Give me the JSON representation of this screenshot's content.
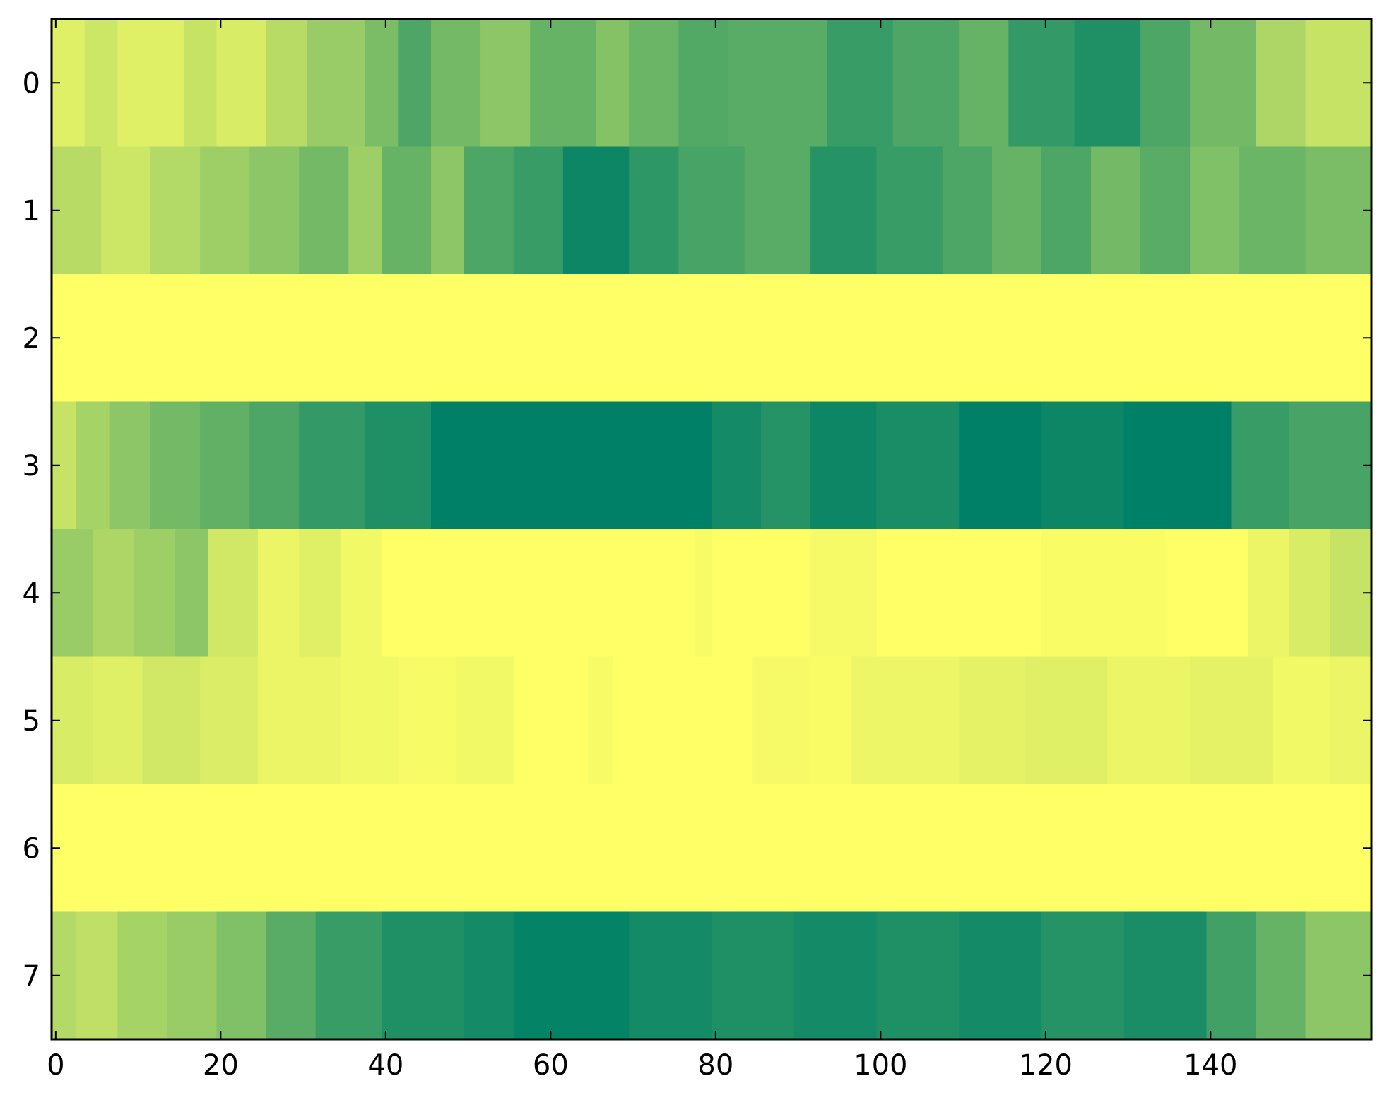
{
  "chart_data": {
    "type": "heatmap",
    "title": "",
    "xlabel": "",
    "ylabel": "",
    "colormap": "summer",
    "colormap_stops": [
      "#008066",
      "#ffff66"
    ],
    "value_range": [
      0,
      1
    ],
    "n_cols": 160,
    "rows": [
      0,
      1,
      2,
      3,
      4,
      5,
      6,
      7
    ],
    "x_ticks": [
      0,
      20,
      40,
      60,
      80,
      100,
      120,
      140
    ],
    "x_tick_labels": [
      "0",
      "20",
      "40",
      "60",
      "80",
      "100",
      "120",
      "140"
    ],
    "y_ticks": [
      0,
      1,
      2,
      3,
      4,
      5,
      6,
      7
    ],
    "y_tick_labels": [
      "0",
      "1",
      "2",
      "3",
      "4",
      "5",
      "6",
      "7"
    ],
    "xlim": [
      -0.5,
      159.5
    ],
    "ylim": [
      7.5,
      -0.5
    ],
    "grid": false,
    "legend": "none",
    "row_segments": [
      [
        {
          "from": 0,
          "to": 4,
          "value": 0.88
        },
        {
          "from": 4,
          "to": 8,
          "value": 0.8
        },
        {
          "from": 8,
          "to": 16,
          "value": 0.88
        },
        {
          "from": 16,
          "to": 20,
          "value": 0.78
        },
        {
          "from": 20,
          "to": 26,
          "value": 0.85
        },
        {
          "from": 26,
          "to": 31,
          "value": 0.72
        },
        {
          "from": 31,
          "to": 38,
          "value": 0.6
        },
        {
          "from": 38,
          "to": 42,
          "value": 0.48
        },
        {
          "from": 42,
          "to": 46,
          "value": 0.3
        },
        {
          "from": 46,
          "to": 52,
          "value": 0.45
        },
        {
          "from": 52,
          "to": 58,
          "value": 0.55
        },
        {
          "from": 58,
          "to": 66,
          "value": 0.4
        },
        {
          "from": 66,
          "to": 70,
          "value": 0.52
        },
        {
          "from": 70,
          "to": 76,
          "value": 0.42
        },
        {
          "from": 76,
          "to": 82,
          "value": 0.32
        },
        {
          "from": 82,
          "to": 94,
          "value": 0.35
        },
        {
          "from": 94,
          "to": 102,
          "value": 0.22
        },
        {
          "from": 102,
          "to": 110,
          "value": 0.3
        },
        {
          "from": 110,
          "to": 116,
          "value": 0.4
        },
        {
          "from": 116,
          "to": 124,
          "value": 0.2
        },
        {
          "from": 124,
          "to": 132,
          "value": 0.12
        },
        {
          "from": 132,
          "to": 138,
          "value": 0.3
        },
        {
          "from": 138,
          "to": 146,
          "value": 0.45
        },
        {
          "from": 146,
          "to": 152,
          "value": 0.68
        },
        {
          "from": 152,
          "to": 160,
          "value": 0.78
        }
      ],
      [
        {
          "from": 0,
          "to": 6,
          "value": 0.72
        },
        {
          "from": 6,
          "to": 12,
          "value": 0.8
        },
        {
          "from": 12,
          "to": 18,
          "value": 0.7
        },
        {
          "from": 18,
          "to": 24,
          "value": 0.62
        },
        {
          "from": 24,
          "to": 30,
          "value": 0.55
        },
        {
          "from": 30,
          "to": 36,
          "value": 0.45
        },
        {
          "from": 36,
          "to": 40,
          "value": 0.62
        },
        {
          "from": 40,
          "to": 46,
          "value": 0.4
        },
        {
          "from": 46,
          "to": 50,
          "value": 0.55
        },
        {
          "from": 50,
          "to": 56,
          "value": 0.3
        },
        {
          "from": 56,
          "to": 62,
          "value": 0.22
        },
        {
          "from": 62,
          "to": 70,
          "value": 0.05
        },
        {
          "from": 70,
          "to": 76,
          "value": 0.18
        },
        {
          "from": 76,
          "to": 84,
          "value": 0.28
        },
        {
          "from": 84,
          "to": 92,
          "value": 0.35
        },
        {
          "from": 92,
          "to": 100,
          "value": 0.15
        },
        {
          "from": 100,
          "to": 108,
          "value": 0.22
        },
        {
          "from": 108,
          "to": 114,
          "value": 0.3
        },
        {
          "from": 114,
          "to": 120,
          "value": 0.4
        },
        {
          "from": 120,
          "to": 126,
          "value": 0.3
        },
        {
          "from": 126,
          "to": 132,
          "value": 0.45
        },
        {
          "from": 132,
          "to": 138,
          "value": 0.35
        },
        {
          "from": 138,
          "to": 144,
          "value": 0.5
        },
        {
          "from": 144,
          "to": 152,
          "value": 0.42
        },
        {
          "from": 152,
          "to": 160,
          "value": 0.48
        }
      ],
      [
        {
          "from": 0,
          "to": 160,
          "value": 1.0
        }
      ],
      [
        {
          "from": 0,
          "to": 3,
          "value": 0.78
        },
        {
          "from": 3,
          "to": 7,
          "value": 0.65
        },
        {
          "from": 7,
          "to": 12,
          "value": 0.55
        },
        {
          "from": 12,
          "to": 18,
          "value": 0.45
        },
        {
          "from": 18,
          "to": 24,
          "value": 0.38
        },
        {
          "from": 24,
          "to": 30,
          "value": 0.3
        },
        {
          "from": 30,
          "to": 38,
          "value": 0.2
        },
        {
          "from": 38,
          "to": 46,
          "value": 0.12
        },
        {
          "from": 46,
          "to": 80,
          "value": 0.0
        },
        {
          "from": 80,
          "to": 86,
          "value": 0.08
        },
        {
          "from": 86,
          "to": 92,
          "value": 0.15
        },
        {
          "from": 92,
          "to": 100,
          "value": 0.05
        },
        {
          "from": 100,
          "to": 110,
          "value": 0.1
        },
        {
          "from": 110,
          "to": 120,
          "value": 0.0
        },
        {
          "from": 120,
          "to": 130,
          "value": 0.05
        },
        {
          "from": 130,
          "to": 143,
          "value": 0.0
        },
        {
          "from": 143,
          "to": 150,
          "value": 0.22
        },
        {
          "from": 150,
          "to": 160,
          "value": 0.28
        }
      ],
      [
        {
          "from": 0,
          "to": 5,
          "value": 0.6
        },
        {
          "from": 5,
          "to": 10,
          "value": 0.68
        },
        {
          "from": 10,
          "to": 15,
          "value": 0.62
        },
        {
          "from": 15,
          "to": 19,
          "value": 0.55
        },
        {
          "from": 19,
          "to": 25,
          "value": 0.82
        },
        {
          "from": 25,
          "to": 30,
          "value": 0.92
        },
        {
          "from": 30,
          "to": 35,
          "value": 0.88
        },
        {
          "from": 35,
          "to": 40,
          "value": 0.95
        },
        {
          "from": 40,
          "to": 78,
          "value": 1.0
        },
        {
          "from": 78,
          "to": 80,
          "value": 0.97
        },
        {
          "from": 80,
          "to": 92,
          "value": 1.0
        },
        {
          "from": 92,
          "to": 100,
          "value": 0.96
        },
        {
          "from": 100,
          "to": 120,
          "value": 1.0
        },
        {
          "from": 120,
          "to": 135,
          "value": 0.98
        },
        {
          "from": 135,
          "to": 145,
          "value": 1.0
        },
        {
          "from": 145,
          "to": 150,
          "value": 0.92
        },
        {
          "from": 150,
          "to": 155,
          "value": 0.85
        },
        {
          "from": 155,
          "to": 160,
          "value": 0.78
        }
      ],
      [
        {
          "from": 0,
          "to": 5,
          "value": 0.85
        },
        {
          "from": 5,
          "to": 11,
          "value": 0.88
        },
        {
          "from": 11,
          "to": 18,
          "value": 0.82
        },
        {
          "from": 18,
          "to": 25,
          "value": 0.86
        },
        {
          "from": 25,
          "to": 35,
          "value": 0.92
        },
        {
          "from": 35,
          "to": 42,
          "value": 0.95
        },
        {
          "from": 42,
          "to": 49,
          "value": 0.97
        },
        {
          "from": 49,
          "to": 56,
          "value": 0.95
        },
        {
          "from": 56,
          "to": 65,
          "value": 1.0
        },
        {
          "from": 65,
          "to": 68,
          "value": 0.97
        },
        {
          "from": 68,
          "to": 85,
          "value": 1.0
        },
        {
          "from": 85,
          "to": 92,
          "value": 0.96
        },
        {
          "from": 92,
          "to": 97,
          "value": 0.98
        },
        {
          "from": 97,
          "to": 110,
          "value": 0.93
        },
        {
          "from": 110,
          "to": 118,
          "value": 0.9
        },
        {
          "from": 118,
          "to": 128,
          "value": 0.88
        },
        {
          "from": 128,
          "to": 138,
          "value": 0.92
        },
        {
          "from": 138,
          "to": 148,
          "value": 0.9
        },
        {
          "from": 148,
          "to": 155,
          "value": 0.95
        },
        {
          "from": 155,
          "to": 160,
          "value": 0.92
        }
      ],
      [
        {
          "from": 0,
          "to": 160,
          "value": 1.0
        }
      ],
      [
        {
          "from": 0,
          "to": 3,
          "value": 0.7
        },
        {
          "from": 3,
          "to": 8,
          "value": 0.75
        },
        {
          "from": 8,
          "to": 14,
          "value": 0.65
        },
        {
          "from": 14,
          "to": 20,
          "value": 0.6
        },
        {
          "from": 20,
          "to": 26,
          "value": 0.5
        },
        {
          "from": 26,
          "to": 32,
          "value": 0.35
        },
        {
          "from": 32,
          "to": 40,
          "value": 0.22
        },
        {
          "from": 40,
          "to": 50,
          "value": 0.12
        },
        {
          "from": 50,
          "to": 56,
          "value": 0.08
        },
        {
          "from": 56,
          "to": 70,
          "value": 0.02
        },
        {
          "from": 70,
          "to": 80,
          "value": 0.08
        },
        {
          "from": 80,
          "to": 90,
          "value": 0.12
        },
        {
          "from": 90,
          "to": 100,
          "value": 0.08
        },
        {
          "from": 100,
          "to": 110,
          "value": 0.12
        },
        {
          "from": 110,
          "to": 120,
          "value": 0.08
        },
        {
          "from": 120,
          "to": 130,
          "value": 0.15
        },
        {
          "from": 130,
          "to": 140,
          "value": 0.1
        },
        {
          "from": 140,
          "to": 146,
          "value": 0.25
        },
        {
          "from": 146,
          "to": 152,
          "value": 0.4
        },
        {
          "from": 152,
          "to": 160,
          "value": 0.55
        }
      ]
    ]
  }
}
